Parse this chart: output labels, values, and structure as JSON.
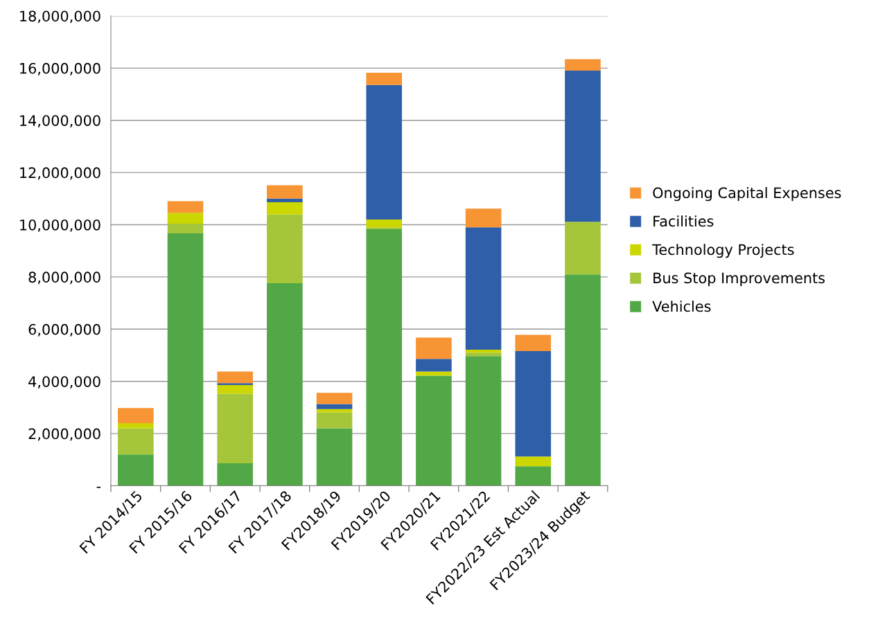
{
  "chart_data": {
    "type": "bar",
    "stacked": true,
    "categories": [
      "FY 2014/15",
      "FY 2015/16",
      "FY 2016/17",
      "FY 2017/18",
      "FY2018/19",
      "FY2019/20",
      "FY2020/21",
      "FY2021/22",
      "FY2022/23 Est Actual",
      "FY2023/24 Budget"
    ],
    "series": [
      {
        "name": "Vehicles",
        "color": "#52a846",
        "values": [
          1200000,
          9670000,
          860000,
          7760000,
          2200000,
          9830000,
          4220000,
          4970000,
          750000,
          8100000
        ]
      },
      {
        "name": "Bus Stop Improvements",
        "color": "#a5c63b",
        "values": [
          1000000,
          370000,
          2670000,
          2630000,
          610000,
          70000,
          0,
          130000,
          0,
          2010000
        ]
      },
      {
        "name": "Technology Projects",
        "color": "#ccd600",
        "values": [
          200000,
          420000,
          330000,
          470000,
          130000,
          300000,
          160000,
          110000,
          370000,
          0
        ]
      },
      {
        "name": "Facilities",
        "color": "#2e5fa8",
        "values": [
          0,
          0,
          70000,
          140000,
          190000,
          5150000,
          480000,
          4690000,
          4040000,
          5790000
        ]
      },
      {
        "name": "Ongoing Capital Expenses",
        "color": "#f79535",
        "values": [
          580000,
          440000,
          450000,
          510000,
          430000,
          470000,
          820000,
          720000,
          620000,
          440000
        ]
      }
    ],
    "ylim": [
      0,
      18000000
    ],
    "yticks": [
      {
        "value": 0,
        "label": "-"
      },
      {
        "value": 2000000,
        "label": "2,000,000"
      },
      {
        "value": 4000000,
        "label": "4,000,000"
      },
      {
        "value": 6000000,
        "label": "6,000,000"
      },
      {
        "value": 8000000,
        "label": "8,000,000"
      },
      {
        "value": 10000000,
        "label": "10,000,000"
      },
      {
        "value": 12000000,
        "label": "12,000,000"
      },
      {
        "value": 14000000,
        "label": "14,000,000"
      },
      {
        "value": 16000000,
        "label": "16,000,000"
      },
      {
        "value": 18000000,
        "label": "18,000,000"
      }
    ],
    "grid": "y",
    "legend": "right"
  }
}
